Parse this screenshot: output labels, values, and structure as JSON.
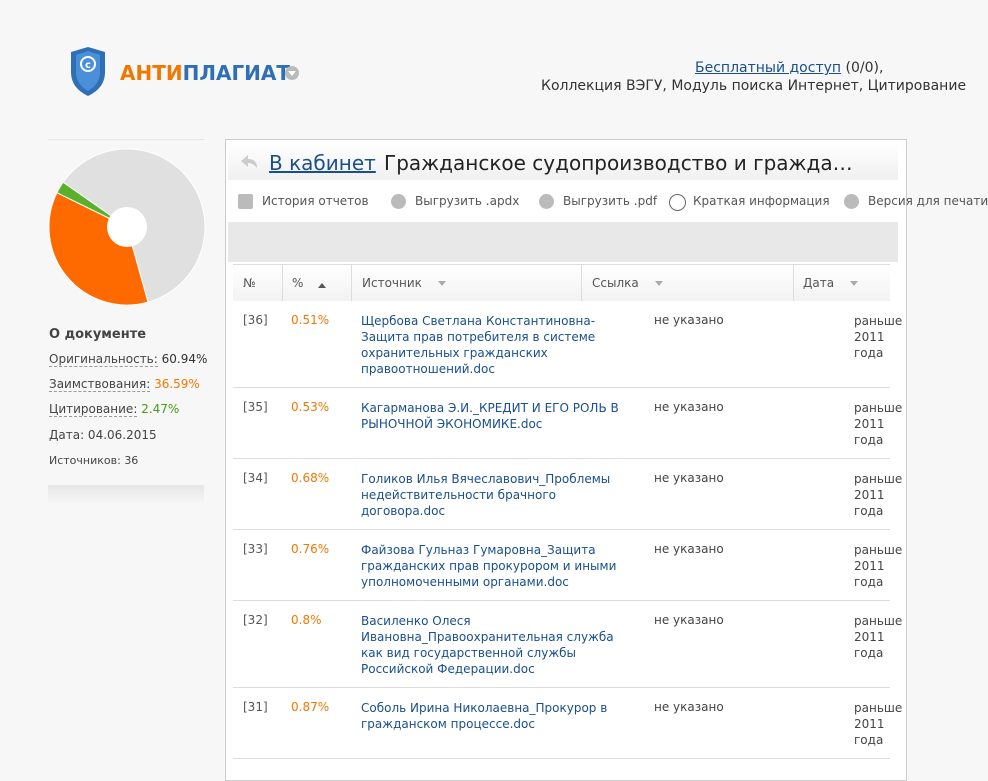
{
  "brand": {
    "part1": "АНТИ",
    "part2": "ПЛАГИАТ"
  },
  "header": {
    "link": "Бесплатный доступ",
    "link_suffix": "(0/0),",
    "collections": "Коллекция ВЭГУ, Модуль поиска Интернет, Цитирование"
  },
  "document": {
    "title": "О документе",
    "stats": [
      {
        "label": "Оригинальность:",
        "value": 60.94,
        "value_label": "60.94%",
        "color": "#e0e0e0",
        "text_color": "#333333"
      },
      {
        "label": "Заимствования:",
        "value": 36.59,
        "value_label": "36.59%",
        "color": "#ff6a00",
        "text_color": "#f07800"
      },
      {
        "label": "Цитирование:",
        "value": 2.47,
        "value_label": "2.47%",
        "color": "#5ab02a",
        "text_color": "#4a9a1a"
      }
    ],
    "date": "Дата: 04.06.2015",
    "sources": "Источников: 36"
  },
  "report": {
    "back": "В кабинет",
    "title": "Гражданское судопроизводство и гражда…",
    "toolbar": [
      "История отчетов",
      "Выгрузить .apdx",
      "Выгрузить .pdf",
      "Краткая информация",
      "Версия для печати"
    ]
  },
  "table": {
    "columns": [
      "№",
      "%",
      "Источник",
      "Ссылка",
      "Дата"
    ],
    "rows": [
      [
        "[36]",
        "0.51%",
        "Щербова Светлана Константиновна-Защита прав потребителя в системе охранительных гражданских правоотношений.doc",
        "не указано",
        "раньше 2011 года"
      ],
      [
        "[35]",
        "0.53%",
        "Кагарманова Э.И._КРЕДИТ И ЕГО РОЛЬ В РЫНОЧНОЙ ЭКОНОМИКЕ.doc",
        "не указано",
        "раньше 2011 года"
      ],
      [
        "[34]",
        "0.68%",
        "Голиков Илья Вячеславович_Проблемы недействительности брачного договора.doc",
        "не указано",
        "раньше 2011 года"
      ],
      [
        "[33]",
        "0.76%",
        "Файзова Гульназ Гумаровна_Защита гражданских прав прокурором и иными уполномоченными органами.doc",
        "не указано",
        "раньше 2011 года"
      ],
      [
        "[32]",
        "0.8%",
        "Василенко Олеся Ивановна_Правоохранительная служба как вид государственной службы Российской Федерации.doc",
        "не указано",
        "раньше 2011 года"
      ],
      [
        "[31]",
        "0.87%",
        "Соболь Ирина Николаевна_Прокурор в гражданском процессе.doc",
        "не указано",
        "раньше 2011 года"
      ]
    ]
  }
}
